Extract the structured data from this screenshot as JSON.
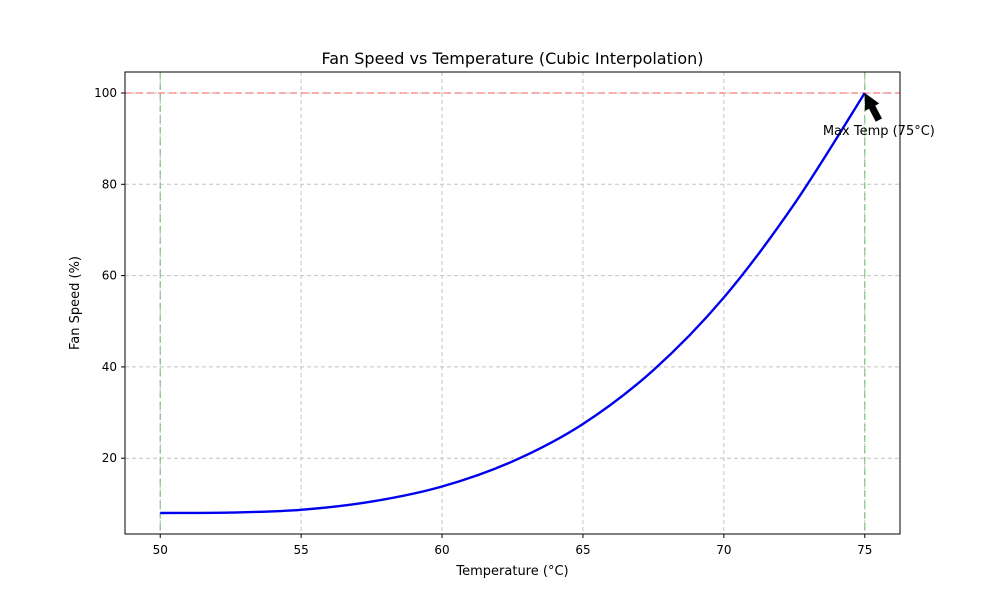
{
  "chart_data": {
    "type": "line",
    "title": "Fan Speed vs Temperature (Cubic Interpolation)",
    "xlabel": "Temperature (°C)",
    "ylabel": "Fan Speed (%)",
    "xlim": [
      48.75,
      76.25
    ],
    "ylim": [
      3.4,
      104.6
    ],
    "x_ticks": [
      50,
      55,
      60,
      65,
      70,
      75
    ],
    "y_ticks": [
      20,
      40,
      60,
      80,
      100
    ],
    "grid": true,
    "series": [
      {
        "color": "#0000ee",
        "x": [
          50,
          52.5,
          55,
          57.5,
          60,
          62.5,
          65,
          67.5,
          70,
          72.5,
          75
        ],
        "y": [
          8,
          8.1,
          8.7,
          10.5,
          13.8,
          19.3,
          27.5,
          39.3,
          55.2,
          75.7,
          100
        ]
      }
    ],
    "reference_lines": [
      {
        "orientation": "horizontal",
        "value": 100,
        "color": "#ff6b6b",
        "style": "dashed"
      },
      {
        "orientation": "vertical",
        "value": 50,
        "color": "#6fbf6f",
        "style": "dashed"
      },
      {
        "orientation": "vertical",
        "value": 75,
        "color": "#6fbf6f",
        "style": "dashed"
      }
    ],
    "annotations": [
      {
        "text": "Max Temp (75°C)",
        "target": [
          75,
          100
        ],
        "text_anchor": [
          75.5,
          91
        ]
      }
    ]
  }
}
